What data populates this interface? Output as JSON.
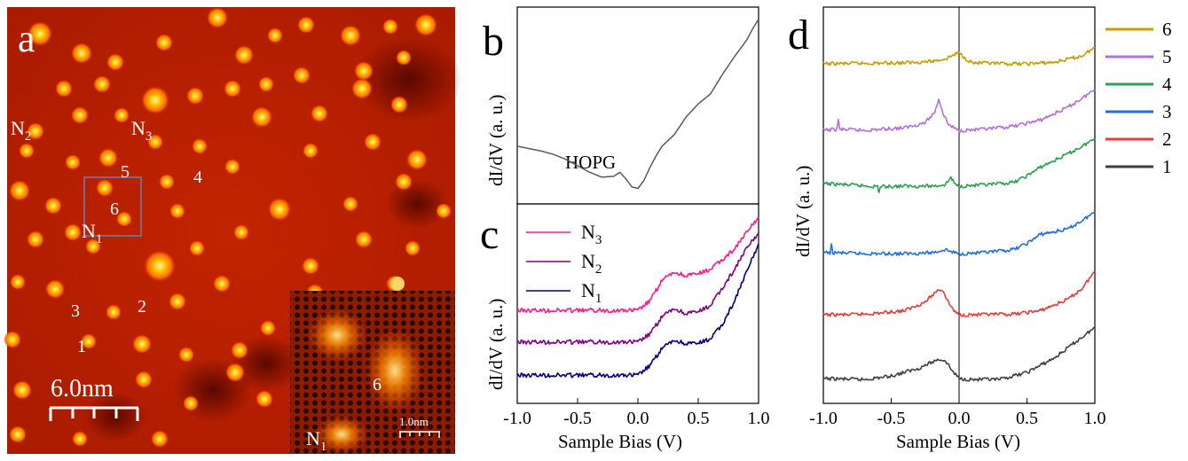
{
  "panel_a": {
    "letter": "a",
    "site_labels": {
      "n1": {
        "base": "N",
        "sub": "1"
      },
      "n2": {
        "base": "N",
        "sub": "2"
      },
      "n3": {
        "base": "N",
        "sub": "3"
      },
      "s1": "1",
      "s2": "2",
      "s3": "3",
      "s4": "4",
      "s5": "5",
      "s6": "6"
    },
    "scale_bar": "6.0nm",
    "inset": {
      "scale_bar": "1.0nm",
      "label_6": "6",
      "label_n1": {
        "base": "N",
        "sub": "1"
      }
    }
  },
  "chart_data": [
    {
      "panel": "b",
      "type": "line",
      "title": "",
      "ylabel": "dI/dV (a. u.)",
      "xlim": [
        -1.0,
        1.0
      ],
      "annotation": "HOPG",
      "series": [
        {
          "name": "HOPG",
          "x": [
            -1.0,
            -0.9,
            -0.8,
            -0.7,
            -0.6,
            -0.5,
            -0.4,
            -0.3,
            -0.2,
            -0.15,
            -0.1,
            -0.05,
            0.0,
            0.05,
            0.1,
            0.15,
            0.2,
            0.3,
            0.4,
            0.5,
            0.6,
            0.7,
            0.8,
            0.9,
            0.95,
            1.0
          ],
          "y": [
            0.3,
            0.285,
            0.27,
            0.25,
            0.22,
            0.18,
            0.14,
            0.11,
            0.115,
            0.14,
            0.1,
            0.05,
            0.04,
            0.09,
            0.17,
            0.24,
            0.3,
            0.37,
            0.48,
            0.56,
            0.62,
            0.74,
            0.85,
            0.95,
            1.02,
            1.08
          ]
        }
      ]
    },
    {
      "panel": "c",
      "type": "line",
      "xlabel": "Sample Bias (V)",
      "ylabel": "dI/dV (a. u.)",
      "xlim": [
        -1.0,
        1.0
      ],
      "xticks": [
        "-1.0",
        "-0.5",
        "0.0",
        "0.5",
        "1.0"
      ],
      "legend": "top-left",
      "series": [
        {
          "name": "N3",
          "color": "#ff1a8c",
          "x": [
            -1.0,
            -0.5,
            0.0,
            0.1,
            0.2,
            0.3,
            0.4,
            0.5,
            0.6,
            0.7,
            0.8,
            0.9,
            1.0
          ],
          "y": [
            0.56,
            0.56,
            0.56,
            0.62,
            0.75,
            0.8,
            0.78,
            0.79,
            0.82,
            0.88,
            0.95,
            1.05,
            1.15
          ]
        },
        {
          "name": "N2",
          "color": "#800080",
          "x": [
            -1.0,
            -0.5,
            0.0,
            0.1,
            0.2,
            0.3,
            0.4,
            0.5,
            0.6,
            0.7,
            0.8,
            0.9,
            1.0
          ],
          "y": [
            0.36,
            0.36,
            0.36,
            0.41,
            0.52,
            0.57,
            0.54,
            0.55,
            0.59,
            0.7,
            0.82,
            0.95,
            1.05
          ]
        },
        {
          "name": "N1",
          "color": "#000080",
          "x": [
            -1.0,
            -0.5,
            0.0,
            0.1,
            0.2,
            0.3,
            0.4,
            0.5,
            0.6,
            0.7,
            0.8,
            0.9,
            1.0
          ],
          "y": [
            0.15,
            0.15,
            0.15,
            0.21,
            0.32,
            0.37,
            0.35,
            0.35,
            0.38,
            0.47,
            0.62,
            0.8,
            0.98
          ]
        }
      ],
      "legend_labels": [
        {
          "base": "N",
          "sub": "3"
        },
        {
          "base": "N",
          "sub": "2"
        },
        {
          "base": "N",
          "sub": "1"
        }
      ]
    },
    {
      "panel": "d",
      "type": "line",
      "xlabel": "Sample Bias (V)",
      "ylabel": "dI/dV (a. u.)",
      "xlim": [
        -1.0,
        1.0
      ],
      "xticks": [
        "-1.0",
        "-0.5",
        "0.0",
        "0.5",
        "1.0"
      ],
      "legend": "right",
      "series": [
        {
          "name": "6",
          "color": "#c89b00",
          "x": [
            -1.0,
            -0.7,
            -0.4,
            -0.2,
            -0.1,
            -0.05,
            0.0,
            0.05,
            0.1,
            0.3,
            0.5,
            0.7,
            0.9,
            1.0
          ],
          "y": [
            0,
            0.01,
            0.02,
            0.05,
            0.1,
            0.16,
            0.22,
            0.1,
            0.02,
            0.0,
            0.0,
            0.03,
            0.15,
            0.32
          ]
        },
        {
          "name": "5",
          "color": "#b070e0",
          "x": [
            -1.0,
            -0.9,
            -0.89,
            -0.88,
            -0.7,
            -0.4,
            -0.25,
            -0.18,
            -0.15,
            -0.12,
            -0.08,
            -0.03,
            0.0,
            0.2,
            0.4,
            0.6,
            0.8,
            0.9,
            1.0
          ],
          "y": [
            0,
            0.02,
            0.22,
            0.02,
            0.0,
            0.05,
            0.15,
            0.35,
            0.62,
            0.35,
            0.12,
            0.03,
            0.0,
            0.02,
            0.08,
            0.2,
            0.45,
            0.62,
            0.8
          ]
        },
        {
          "name": "4",
          "color": "#2aa050",
          "x": [
            -1.0,
            -0.8,
            -0.6,
            -0.59,
            -0.58,
            -0.4,
            -0.2,
            -0.1,
            -0.06,
            -0.03,
            0.0,
            0.2,
            0.4,
            0.5,
            0.6,
            0.8,
            0.9,
            1.0
          ],
          "y": [
            0,
            -0.03,
            -0.06,
            -0.18,
            -0.06,
            -0.05,
            -0.05,
            -0.02,
            0.12,
            -0.02,
            -0.05,
            -0.03,
            0.02,
            0.15,
            0.32,
            0.58,
            0.72,
            0.88
          ]
        },
        {
          "name": "3",
          "color": "#1f6fe0",
          "x": [
            -1.0,
            -0.95,
            -0.94,
            -0.93,
            -0.7,
            -0.4,
            -0.2,
            -0.1,
            -0.05,
            0.0,
            0.2,
            0.4,
            0.5,
            0.6,
            0.8,
            0.9,
            1.0
          ],
          "y": [
            0,
            0,
            0.14,
            0,
            -0.02,
            -0.02,
            0.0,
            0.06,
            0.01,
            -0.02,
            0.0,
            0.06,
            0.18,
            0.36,
            0.46,
            0.62,
            0.8
          ]
        },
        {
          "name": "2",
          "color": "#e83a3a",
          "x": [
            -1.0,
            -0.8,
            -0.6,
            -0.4,
            -0.25,
            -0.15,
            -0.12,
            -0.08,
            -0.03,
            0.0,
            0.2,
            0.4,
            0.6,
            0.8,
            0.9,
            1.0
          ],
          "y": [
            0,
            0.0,
            0.03,
            0.08,
            0.25,
            0.5,
            0.48,
            0.25,
            0.05,
            0.0,
            0.0,
            0.01,
            0.08,
            0.3,
            0.5,
            0.85
          ]
        },
        {
          "name": "1",
          "color": "#404040",
          "x": [
            -1.0,
            -0.7,
            -0.5,
            -0.3,
            -0.15,
            -0.1,
            -0.05,
            0.0,
            0.1,
            0.3,
            0.5,
            0.7,
            0.85,
            1.0
          ],
          "y": [
            0,
            -0.02,
            0.05,
            0.2,
            0.38,
            0.35,
            0.15,
            0.0,
            -0.02,
            -0.02,
            0.12,
            0.4,
            0.7,
            1.0
          ]
        }
      ]
    }
  ]
}
